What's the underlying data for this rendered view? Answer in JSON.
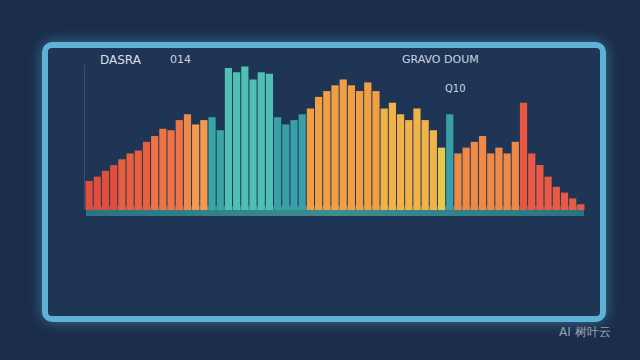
{
  "chart_data": {
    "type": "bar",
    "title": "DASRA",
    "annotations": [
      "014",
      "GRAVO DOUM",
      "Q10",
      "AI 树叶云"
    ],
    "categories": [
      null,
      null,
      null,
      null,
      null,
      null,
      null,
      null,
      null,
      null,
      null,
      null,
      null,
      null,
      null,
      null,
      null,
      null,
      null,
      null,
      null,
      null,
      null,
      null,
      null,
      null,
      null,
      null,
      null,
      null,
      null,
      null,
      null,
      null,
      null,
      null,
      null,
      null,
      null,
      null,
      null,
      null,
      null,
      null,
      null,
      null,
      null,
      null,
      null,
      null,
      null,
      null,
      null,
      null,
      null,
      null,
      null,
      null,
      null,
      null,
      null
    ],
    "values": [
      20,
      23,
      27,
      31,
      35,
      39,
      41,
      47,
      51,
      56,
      55,
      62,
      66,
      59,
      62,
      64,
      55,
      98,
      95,
      99,
      90,
      95,
      94,
      64,
      59,
      62,
      66,
      70,
      78,
      82,
      86,
      90,
      86,
      82,
      88,
      82,
      70,
      74,
      66,
      62,
      70,
      62,
      55,
      43,
      66,
      39,
      43,
      47,
      51,
      39,
      43,
      39,
      47,
      74,
      39,
      31,
      23,
      16,
      12,
      8,
      4
    ],
    "colors": [
      "#e24e3b",
      "#e24e3b",
      "#e24e3b",
      "#e24e3b",
      "#e8603f",
      "#e8603f",
      "#e8603f",
      "#e8603f",
      "#ee7445",
      "#ee7445",
      "#ee7445",
      "#ee7445",
      "#f08a4a",
      "#f39a4e",
      "#f39a4e",
      "#3aa6a3",
      "#3aa6a3",
      "#4fc0b2",
      "#4fc0b2",
      "#4fc0b2",
      "#4fc0b2",
      "#4fc0b2",
      "#4fc0b2",
      "#3a9fa8",
      "#3a9fa8",
      "#3a9fa8",
      "#3a9fa8",
      "#f0a042",
      "#f0a042",
      "#f0a042",
      "#f0a042",
      "#f0a042",
      "#f0a042",
      "#f0a042",
      "#f0a042",
      "#f0a042",
      "#f2b24a",
      "#f2b24a",
      "#f2b24a",
      "#f2b24a",
      "#f2b24a",
      "#f2b24a",
      "#f2b24a",
      "#e6c84f",
      "#3a9fa8",
      "#ee8a45",
      "#ee8a45",
      "#ee8a45",
      "#ee8a45",
      "#ee8a45",
      "#ee8a45",
      "#ee8a45",
      "#ee8a45",
      "#e9553f",
      "#e85a45",
      "#e85a45",
      "#e85a45",
      "#e85a45",
      "#e85a45",
      "#e85a45",
      "#e85a45"
    ],
    "ylim": [
      0,
      100
    ],
    "tick_labels": false,
    "grid": false
  }
}
